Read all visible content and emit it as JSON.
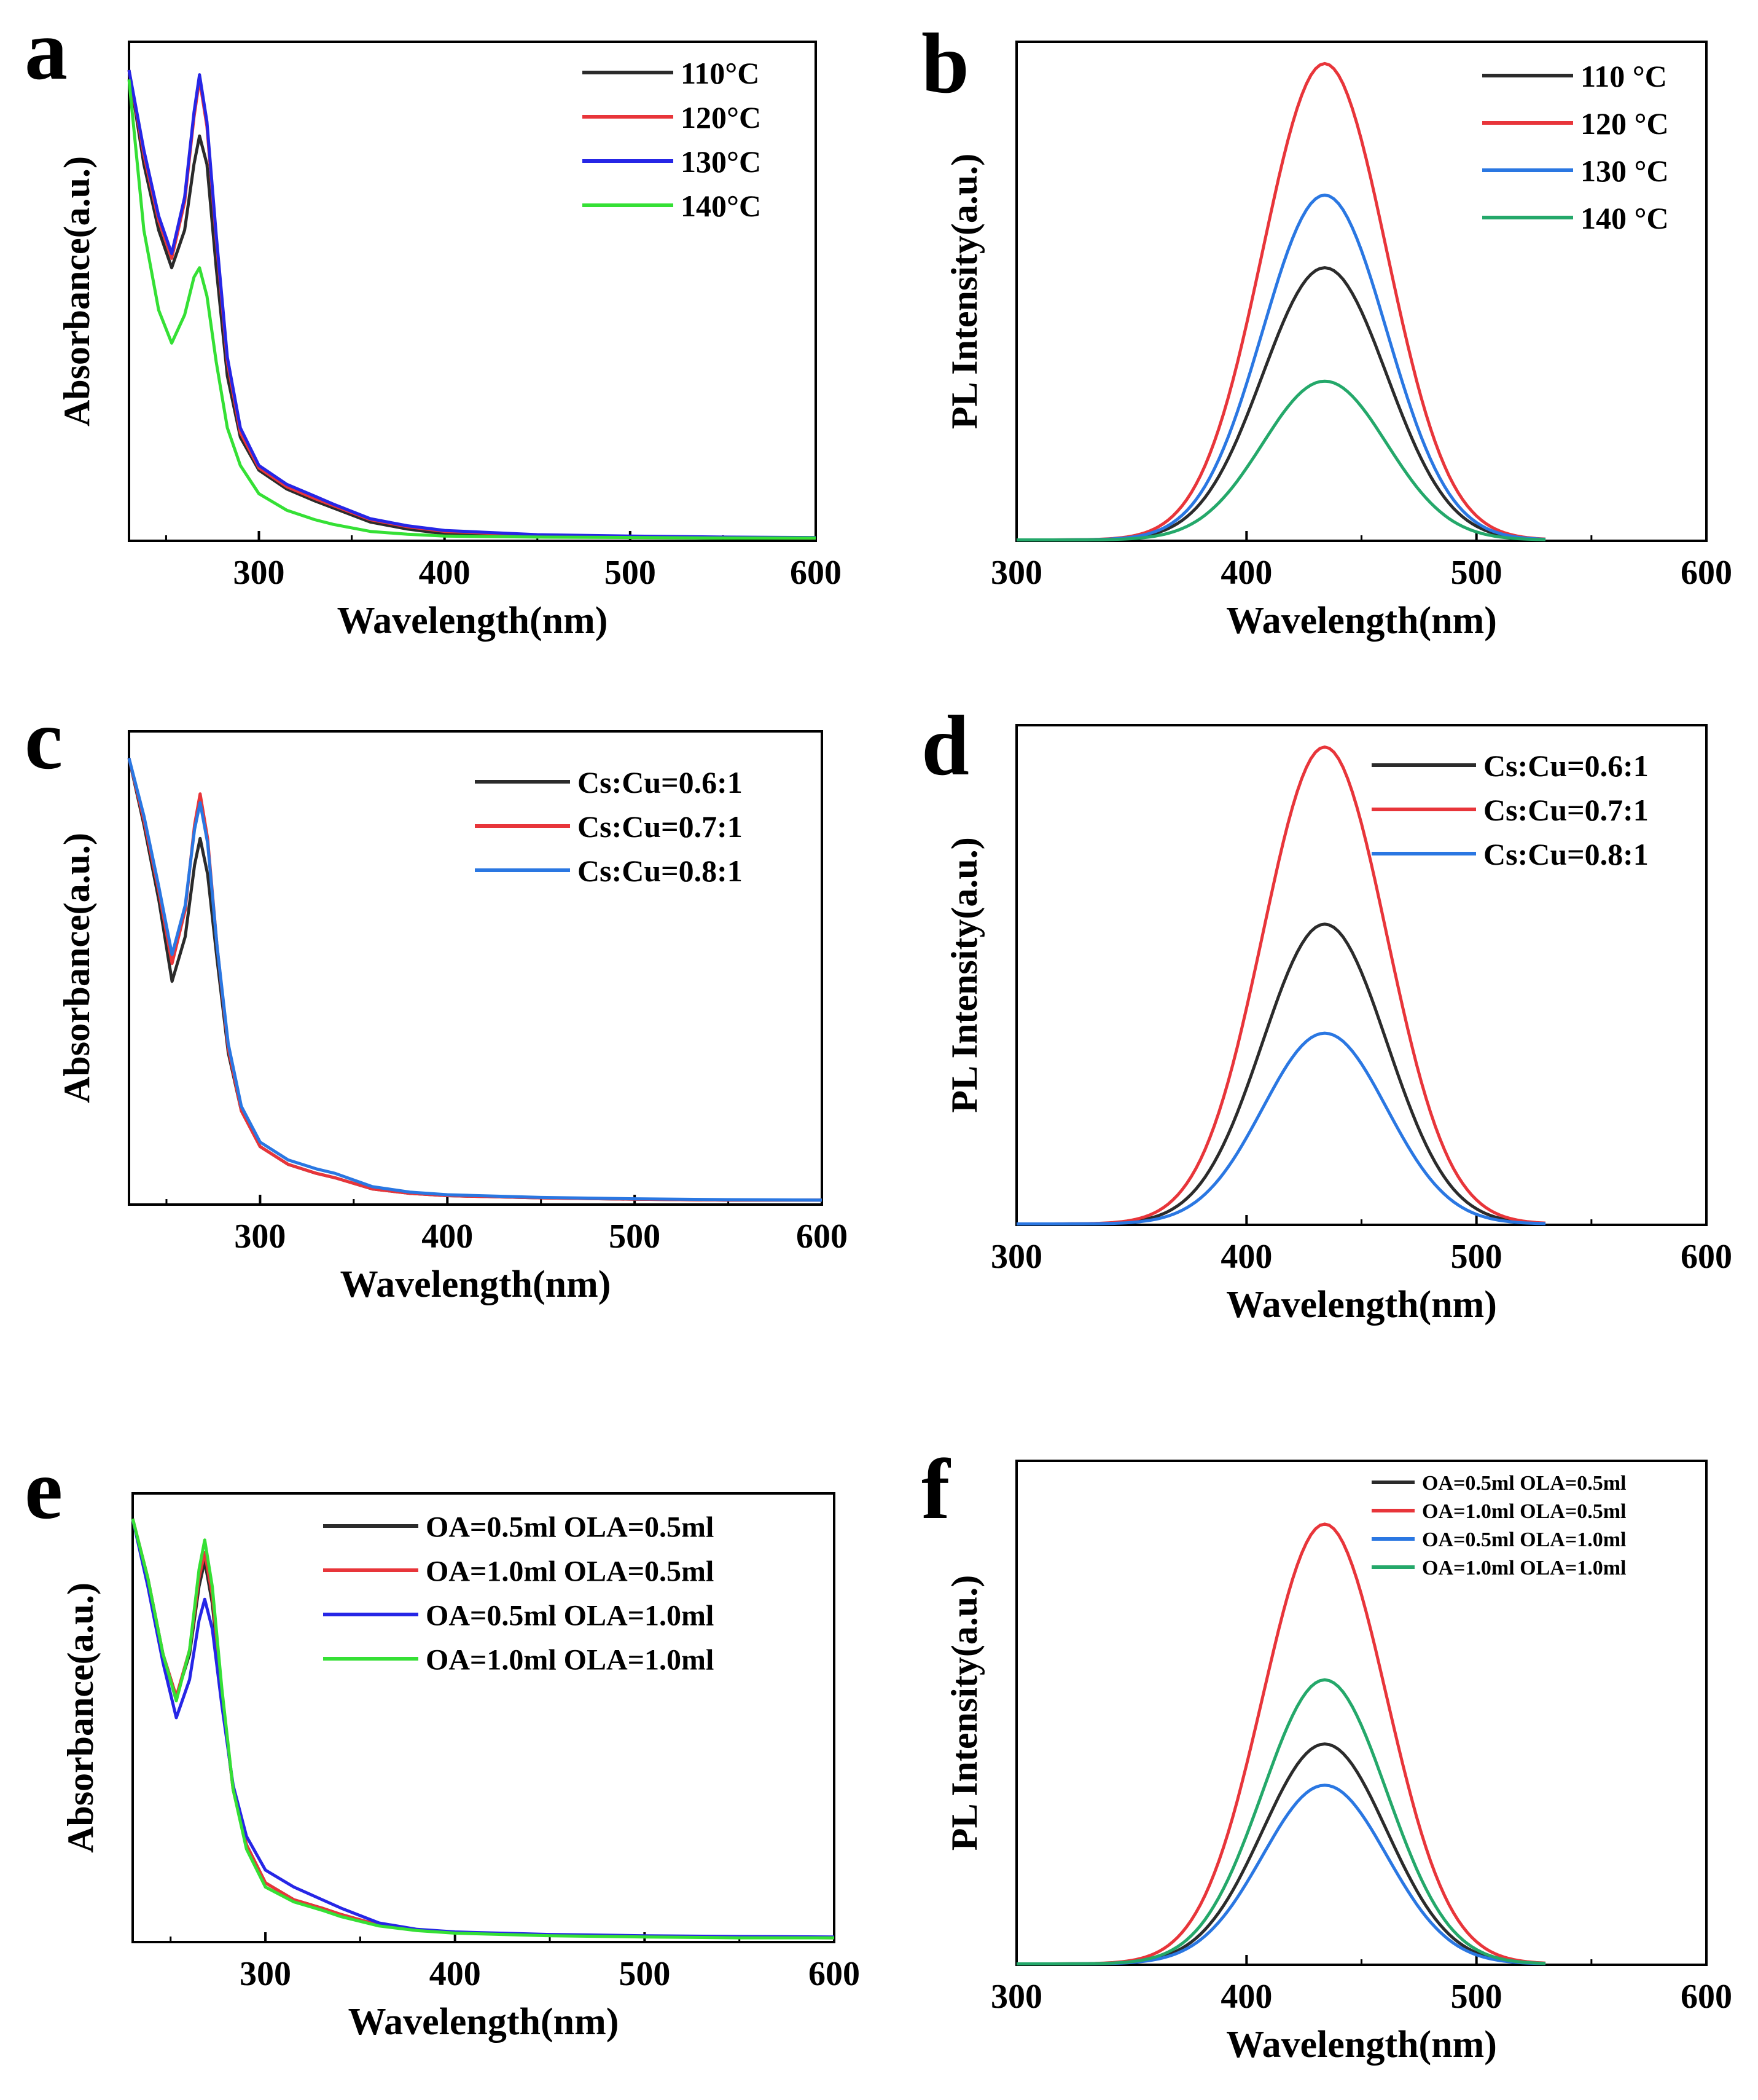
{
  "colors": {
    "black": "#2b2b2b",
    "red": "#e8353a",
    "blue_abs": "#2626e6",
    "green_abs": "#35e035",
    "blue_pl": "#2a77e2",
    "green_pl": "#24a86a",
    "axis": "#000000"
  },
  "chart_data": [
    {
      "panel": "a",
      "type": "line",
      "xlabel": "Wavelength(nm)",
      "ylabel": "Absorbance(a.u.)",
      "xlim": [
        230,
        600
      ],
      "ylim": [
        0,
        1.06
      ],
      "xticks": [
        300,
        400,
        500,
        600
      ],
      "legend_position": "top-right",
      "series": [
        {
          "name": "110°C",
          "color": "#2b2b2b",
          "x": [
            230,
            238,
            246,
            253,
            260,
            265,
            268,
            272,
            277,
            283,
            290,
            300,
            315,
            330,
            340,
            360,
            380,
            400,
            450,
            500,
            550,
            600
          ],
          "y": [
            1.0,
            0.8,
            0.66,
            0.58,
            0.66,
            0.8,
            0.86,
            0.8,
            0.58,
            0.35,
            0.22,
            0.15,
            0.11,
            0.085,
            0.07,
            0.04,
            0.025,
            0.015,
            0.01,
            0.008,
            0.006,
            0.005
          ]
        },
        {
          "name": "120°C",
          "color": "#e8353a",
          "x": [
            230,
            238,
            246,
            253,
            260,
            265,
            268,
            272,
            277,
            283,
            290,
            300,
            315,
            330,
            340,
            360,
            380,
            400,
            450,
            500,
            550,
            600
          ],
          "y": [
            1.0,
            0.82,
            0.68,
            0.6,
            0.72,
            0.9,
            0.98,
            0.88,
            0.64,
            0.38,
            0.23,
            0.155,
            0.115,
            0.09,
            0.075,
            0.045,
            0.03,
            0.02,
            0.012,
            0.009,
            0.007,
            0.006
          ]
        },
        {
          "name": "130°C",
          "color": "#2626e6",
          "x": [
            230,
            238,
            246,
            253,
            260,
            265,
            268,
            272,
            277,
            283,
            290,
            300,
            315,
            330,
            340,
            360,
            380,
            400,
            450,
            500,
            550,
            600
          ],
          "y": [
            1.0,
            0.83,
            0.69,
            0.61,
            0.73,
            0.91,
            0.99,
            0.89,
            0.65,
            0.39,
            0.24,
            0.16,
            0.12,
            0.095,
            0.078,
            0.047,
            0.032,
            0.022,
            0.013,
            0.01,
            0.008,
            0.007
          ]
        },
        {
          "name": "140°C",
          "color": "#35e035",
          "x": [
            230,
            238,
            246,
            253,
            260,
            265,
            268,
            272,
            277,
            283,
            290,
            300,
            315,
            330,
            340,
            360,
            380,
            400,
            450,
            500,
            550,
            600
          ],
          "y": [
            0.98,
            0.66,
            0.49,
            0.42,
            0.48,
            0.56,
            0.58,
            0.52,
            0.38,
            0.24,
            0.16,
            0.1,
            0.065,
            0.045,
            0.035,
            0.02,
            0.014,
            0.01,
            0.008,
            0.007,
            0.006,
            0.006
          ]
        }
      ],
      "legend": [
        "110°C",
        "120°C",
        "130°C",
        "140°C"
      ],
      "panel_label": "a"
    },
    {
      "panel": "b",
      "type": "line",
      "xlabel": "Wavelength(nm)",
      "ylabel": "PL Intensity(a.u.)",
      "xlim": [
        300,
        600
      ],
      "ylim": [
        0,
        1.1
      ],
      "xticks": [
        300,
        400,
        500,
        600
      ],
      "legend_position": "top-right",
      "pl_peak_nm": 434,
      "pl_sigma_nm": 27,
      "x_range": [
        300,
        530
      ],
      "series": [
        {
          "name": "110 °C",
          "color": "#2b2b2b",
          "peak": 0.6
        },
        {
          "name": "120 °C",
          "color": "#e8353a",
          "peak": 1.05
        },
        {
          "name": "130 °C",
          "color": "#2a77e2",
          "peak": 0.76
        },
        {
          "name": "140 °C",
          "color": "#24a86a",
          "peak": 0.35
        }
      ],
      "legend": [
        "110 °C",
        "120 °C",
        "130 °C",
        "140 °C"
      ],
      "panel_label": "b"
    },
    {
      "panel": "c",
      "type": "line",
      "xlabel": "Wavelength(nm)",
      "ylabel": "Absorbance(a.u.)",
      "xlim": [
        230,
        600
      ],
      "ylim": [
        0,
        1.06
      ],
      "xticks": [
        300,
        400,
        500,
        600
      ],
      "legend_position": "top-right",
      "series": [
        {
          "name": "Cs:Cu=0.6:1",
          "color": "#2b2b2b",
          "x": [
            230,
            238,
            246,
            253,
            260,
            265,
            268,
            272,
            277,
            283,
            290,
            300,
            315,
            330,
            340,
            360,
            380,
            400,
            450,
            500,
            550,
            600
          ],
          "y": [
            1.0,
            0.85,
            0.68,
            0.5,
            0.6,
            0.76,
            0.82,
            0.74,
            0.55,
            0.34,
            0.21,
            0.13,
            0.09,
            0.07,
            0.06,
            0.035,
            0.025,
            0.02,
            0.015,
            0.012,
            0.01,
            0.01
          ]
        },
        {
          "name": "Cs:Cu=0.7:1",
          "color": "#e8353a",
          "x": [
            230,
            238,
            246,
            253,
            260,
            265,
            268,
            272,
            277,
            283,
            290,
            300,
            315,
            330,
            340,
            360,
            380,
            400,
            450,
            500,
            550,
            600
          ],
          "y": [
            1.0,
            0.86,
            0.7,
            0.54,
            0.66,
            0.85,
            0.92,
            0.82,
            0.58,
            0.35,
            0.21,
            0.13,
            0.09,
            0.07,
            0.06,
            0.035,
            0.025,
            0.02,
            0.015,
            0.012,
            0.01,
            0.01
          ]
        },
        {
          "name": "Cs:Cu=0.8:1",
          "color": "#2a77e2",
          "x": [
            230,
            238,
            246,
            253,
            260,
            265,
            268,
            272,
            277,
            283,
            290,
            300,
            315,
            330,
            340,
            360,
            380,
            400,
            450,
            500,
            550,
            600
          ],
          "y": [
            1.0,
            0.87,
            0.71,
            0.56,
            0.67,
            0.84,
            0.9,
            0.81,
            0.58,
            0.36,
            0.22,
            0.14,
            0.1,
            0.08,
            0.07,
            0.04,
            0.028,
            0.022,
            0.016,
            0.013,
            0.011,
            0.01
          ]
        }
      ],
      "legend": [
        "Cs:Cu=0.6:1",
        "Cs:Cu=0.7:1",
        "Cs:Cu=0.8:1"
      ],
      "panel_label": "c"
    },
    {
      "panel": "d",
      "type": "line",
      "xlabel": "Wavelength(nm)",
      "ylabel": "PL Intensity(a.u.)",
      "xlim": [
        300,
        600
      ],
      "ylim": [
        0,
        1.1
      ],
      "xticks": [
        300,
        400,
        500,
        600
      ],
      "legend_position": "top-right",
      "pl_peak_nm": 434,
      "pl_sigma_nm": 27,
      "x_range": [
        300,
        530
      ],
      "series": [
        {
          "name": "Cs:Cu=0.6:1",
          "color": "#2b2b2b",
          "peak": 0.66
        },
        {
          "name": "Cs:Cu=0.7:1",
          "color": "#e8353a",
          "peak": 1.05
        },
        {
          "name": "Cs:Cu=0.8:1",
          "color": "#2a77e2",
          "peak": 0.42
        }
      ],
      "legend": [
        "Cs:Cu=0.6:1",
        "Cs:Cu=0.7:1",
        "Cs:Cu=0.8:1"
      ],
      "panel_label": "d"
    },
    {
      "panel": "e",
      "type": "line",
      "xlabel": "Wavelength(nm)",
      "ylabel": "Absorbance(a.u.)",
      "xlim": [
        230,
        600
      ],
      "ylim": [
        0,
        1.06
      ],
      "xticks": [
        300,
        400,
        500,
        600
      ],
      "legend_position": "top-right",
      "series": [
        {
          "name": "OA=0.5ml OLA=0.5ml",
          "color": "#2b2b2b",
          "x": [
            230,
            238,
            246,
            253,
            260,
            265,
            268,
            272,
            277,
            283,
            290,
            300,
            315,
            330,
            340,
            360,
            380,
            400,
            450,
            500,
            550,
            600
          ],
          "y": [
            1.0,
            0.86,
            0.68,
            0.58,
            0.68,
            0.84,
            0.9,
            0.8,
            0.58,
            0.36,
            0.23,
            0.14,
            0.1,
            0.08,
            0.065,
            0.04,
            0.028,
            0.022,
            0.016,
            0.013,
            0.011,
            0.01
          ]
        },
        {
          "name": "OA=1.0ml OLA=0.5ml",
          "color": "#e8353a",
          "x": [
            230,
            238,
            246,
            253,
            260,
            265,
            268,
            272,
            277,
            283,
            290,
            300,
            315,
            330,
            340,
            360,
            380,
            400,
            450,
            500,
            550,
            600
          ],
          "y": [
            1.0,
            0.86,
            0.68,
            0.58,
            0.69,
            0.86,
            0.92,
            0.82,
            0.59,
            0.36,
            0.23,
            0.14,
            0.1,
            0.08,
            0.065,
            0.04,
            0.028,
            0.022,
            0.016,
            0.013,
            0.011,
            0.01
          ]
        },
        {
          "name": "OA=0.5ml OLA=1.0ml",
          "color": "#2626e6",
          "x": [
            230,
            238,
            246,
            253,
            260,
            265,
            268,
            272,
            277,
            283,
            290,
            300,
            315,
            330,
            340,
            360,
            380,
            400,
            450,
            500,
            550,
            600
          ],
          "y": [
            1.0,
            0.84,
            0.66,
            0.53,
            0.62,
            0.76,
            0.81,
            0.74,
            0.56,
            0.37,
            0.25,
            0.17,
            0.13,
            0.1,
            0.08,
            0.045,
            0.03,
            0.024,
            0.018,
            0.015,
            0.013,
            0.012
          ]
        },
        {
          "name": "OA=1.0ml OLA=1.0ml",
          "color": "#35e035",
          "x": [
            230,
            238,
            246,
            253,
            260,
            265,
            268,
            272,
            277,
            283,
            290,
            300,
            315,
            330,
            340,
            360,
            380,
            400,
            450,
            500,
            550,
            600
          ],
          "y": [
            1.0,
            0.86,
            0.68,
            0.57,
            0.69,
            0.88,
            0.95,
            0.84,
            0.6,
            0.36,
            0.22,
            0.13,
            0.095,
            0.075,
            0.06,
            0.038,
            0.027,
            0.021,
            0.015,
            0.012,
            0.01,
            0.01
          ]
        }
      ],
      "legend": [
        "OA=0.5ml OLA=0.5ml",
        "OA=1.0ml OLA=0.5ml",
        "OA=0.5ml OLA=1.0ml",
        "OA=1.0ml OLA=1.0ml"
      ],
      "panel_label": "e"
    },
    {
      "panel": "f",
      "type": "line",
      "xlabel": "Wavelength(nm)",
      "ylabel": "PL Intensity(a.u.)",
      "xlim": [
        300,
        600
      ],
      "ylim": [
        0,
        1.1
      ],
      "xticks": [
        300,
        400,
        500,
        600
      ],
      "legend_position": "top-right",
      "pl_peak_nm": 434,
      "pl_sigma_nm": 27,
      "x_range": [
        300,
        530
      ],
      "series": [
        {
          "name": "OA=0.5ml OLA=0.5ml",
          "color": "#2b2b2b",
          "peak": 0.48
        },
        {
          "name": "OA=1.0ml OLA=0.5ml",
          "color": "#e8353a",
          "peak": 0.96
        },
        {
          "name": "OA=0.5ml OLA=1.0ml",
          "color": "#2a77e2",
          "peak": 0.39
        },
        {
          "name": "OA=1.0ml OLA=1.0ml",
          "color": "#24a86a",
          "peak": 0.62
        }
      ],
      "legend": [
        "OA=0.5ml OLA=0.5ml",
        "OA=1.0ml OLA=0.5ml",
        "OA=0.5ml OLA=1.0ml",
        "OA=1.0ml OLA=1.0ml"
      ],
      "panel_label": "f"
    }
  ]
}
